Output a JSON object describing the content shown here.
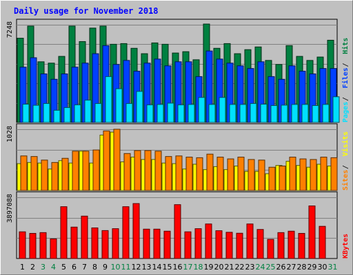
{
  "chart_data": {
    "type": "bar",
    "title": "Daily usage for November 2018",
    "categories": [
      "1",
      "2",
      "3",
      "4",
      "5",
      "6",
      "7",
      "8",
      "9",
      "10",
      "11",
      "12",
      "13",
      "14",
      "15",
      "16",
      "17",
      "18",
      "19",
      "20",
      "21",
      "22",
      "23",
      "24",
      "25",
      "26",
      "27",
      "28",
      "29",
      "30",
      "31"
    ],
    "weekend_days": [
      "3",
      "4",
      "10",
      "11",
      "17",
      "18",
      "24",
      "25",
      "31"
    ],
    "colors": {
      "background": "#c0c0c0",
      "title": "#0000ff",
      "hits": "#008040",
      "files": "#0040ff",
      "pages": "#00e0ff",
      "visits": "#ffff00",
      "sites": "#ff8000",
      "kbytes": "#ff0000",
      "weekday_label": "#000000",
      "weekend_label": "#008040"
    },
    "panels": [
      {
        "id": "hits-files-pages",
        "max_label": "7248",
        "ymax": 7248,
        "legend": [
          "Pages",
          "Files",
          "Hits"
        ],
        "series": [
          {
            "name": "Hits",
            "values": [
              6250,
              7150,
              4500,
              4400,
              4900,
              7150,
              6000,
              7000,
              7150,
              5800,
              5850,
              5500,
              5100,
              5900,
              5800,
              5150,
              5250,
              4650,
              7300,
              5500,
              5850,
              5100,
              5400,
              5600,
              4600,
              4300,
              5700,
              4900,
              4600,
              4850,
              6100
            ]
          },
          {
            "name": "Files",
            "values": [
              4100,
              4800,
              3600,
              3200,
              3600,
              4100,
              4400,
              5100,
              5700,
              4300,
              4600,
              3800,
              4400,
              4700,
              4200,
              4500,
              4500,
              3400,
              5300,
              4700,
              4400,
              4200,
              4000,
              4500,
              3400,
              3200,
              4200,
              3800,
              3600,
              4000,
              4000
            ]
          },
          {
            "name": "Pages",
            "values": [
              1350,
              1270,
              1400,
              900,
              1100,
              1300,
              1650,
              1400,
              3400,
              2500,
              1400,
              2300,
              1300,
              1330,
              1430,
              1300,
              1330,
              1850,
              1330,
              1850,
              1330,
              1330,
              1400,
              1350,
              1250,
              1280,
              1330,
              1330,
              1250,
              1330,
              1900
            ]
          }
        ]
      },
      {
        "id": "visits-sites",
        "max_label": "1028",
        "ymax": 1028,
        "legend": [
          "Sites",
          "Visits"
        ],
        "series": [
          {
            "name": "Visits",
            "values": [
              450,
              470,
              460,
              360,
              500,
              460,
              660,
              460,
              930,
              980,
              480,
              560,
              520,
              520,
              460,
              450,
              360,
              440,
              350,
              400,
              350,
              410,
              320,
              320,
              280,
              420,
              490,
              420,
              390,
              440,
              410
            ]
          },
          {
            "name": "Sites",
            "values": [
              580,
              570,
              510,
              470,
              540,
              660,
              660,
              680,
              1000,
              1028,
              620,
              670,
              670,
              660,
              570,
              580,
              560,
              550,
              610,
              560,
              530,
              560,
              520,
              510,
              390,
              410,
              560,
              530,
              520,
              560,
              550
            ]
          }
        ]
      },
      {
        "id": "kbytes",
        "max_label": "3897088",
        "ymax": 3897088,
        "legend": [
          "KBytes"
        ],
        "series": [
          {
            "name": "KBytes",
            "values": [
              1700000,
              1600000,
              1650000,
              1250000,
              3300000,
              2000000,
              2700000,
              1950000,
              1780000,
              1900000,
              3300000,
              3500000,
              1870000,
              1870000,
              1740000,
              3430000,
              1700000,
              1900000,
              2200000,
              1770000,
              1670000,
              1610000,
              2200000,
              1850000,
              1220000,
              1650000,
              1740000,
              1600000,
              3350000,
              2050000,
              0
            ]
          }
        ]
      }
    ],
    "grid": true,
    "legend_position": "right, vertical"
  }
}
